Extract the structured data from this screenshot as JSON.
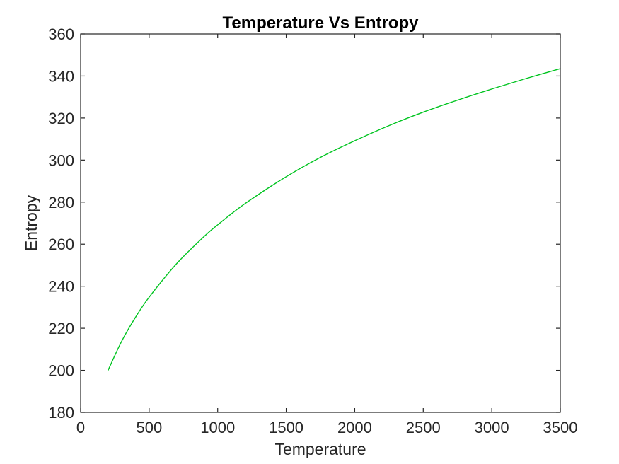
{
  "figure": {
    "background": "#ffffff"
  },
  "chart_data": {
    "type": "line",
    "title": "Temperature Vs Entropy",
    "xlabel": "Temperature",
    "ylabel": "Entropy",
    "xlim": [
      0,
      3500
    ],
    "ylim": [
      180,
      360
    ],
    "x_ticks": [
      0,
      500,
      1000,
      1500,
      2000,
      2500,
      3000,
      3500
    ],
    "y_ticks": [
      180,
      200,
      220,
      240,
      260,
      280,
      300,
      320,
      340,
      360
    ],
    "grid": false,
    "legend_position": "none",
    "box": true,
    "tick_direction": "in",
    "line_color": "#00c420",
    "axis_color": "#262626",
    "title_color": "#000000",
    "series": [
      {
        "name": "Entropy vs Temperature",
        "x": [
          200,
          300,
          400,
          500,
          700,
          900,
          1000,
          1200,
          1500,
          1750,
          2000,
          2250,
          2500,
          2750,
          3000,
          3250,
          3500
        ],
        "y": [
          200.0,
          213.9,
          225.2,
          234.8,
          250.7,
          263.6,
          269.2,
          279.3,
          292.1,
          301.3,
          309.2,
          316.4,
          322.8,
          328.5,
          333.8,
          338.8,
          343.5
        ]
      }
    ]
  }
}
